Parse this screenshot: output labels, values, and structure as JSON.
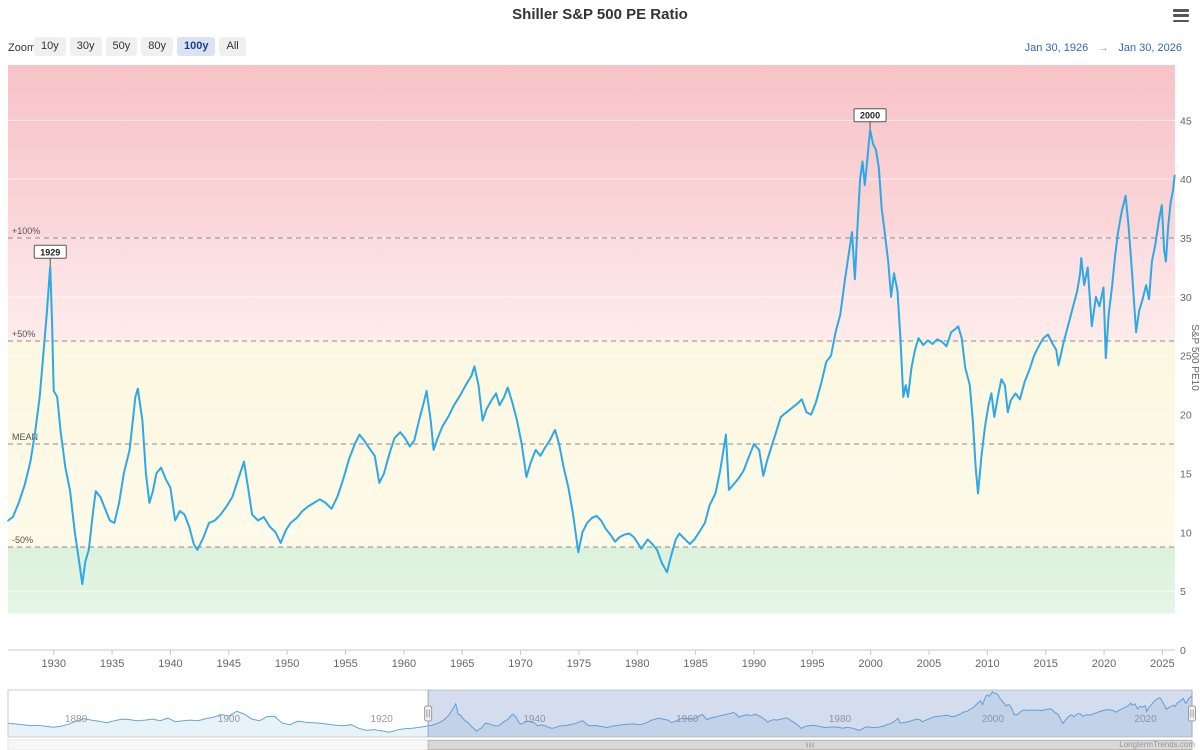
{
  "header": {
    "title": "Shiller S&P 500 PE Ratio"
  },
  "range_selector": {
    "zoom_label": "Zoom",
    "buttons": [
      "10y",
      "30y",
      "50y",
      "80y",
      "100y",
      "All"
    ],
    "selected": "100y",
    "date_from": "Jan 30, 1926",
    "date_arrow": "→",
    "date_to": "Jan 30, 2026",
    "accent_color": "#3565c0"
  },
  "credits": {
    "text": "LongtermTrends.com"
  },
  "chart_data": {
    "type": "line",
    "title": "Shiller S&P 500 PE Ratio",
    "series_name": "Shiller S&P 500 PE Ratio",
    "ylabel": "S&P 500 PE10",
    "line_color": "#2ea8e6",
    "x_range": [
      1926.08,
      2026.08
    ],
    "y_range": [
      0,
      49.7
    ],
    "y_ticks": [
      0,
      5,
      10,
      15,
      20,
      25,
      30,
      35,
      40,
      45
    ],
    "x_ticks": [
      1930,
      1935,
      1940,
      1945,
      1950,
      1955,
      1960,
      1965,
      1970,
      1975,
      1980,
      1985,
      1990,
      1995,
      2000,
      2005,
      2010,
      2015,
      2020,
      2025
    ],
    "guides": [
      {
        "label": "+100%",
        "value": 35.0
      },
      {
        "label": "+50%",
        "value": 26.25
      },
      {
        "label": "MEAN",
        "value": 17.5
      },
      {
        "label": "-50%",
        "value": 8.75
      }
    ],
    "bands": [
      {
        "from": 35.0,
        "to": 49.7,
        "color_top": "#f7c3c7",
        "color_bottom": "#fbd8da"
      },
      {
        "from": 26.25,
        "to": 35.0,
        "color_top": "#fbdce0",
        "color_bottom": "#fdecea"
      },
      {
        "from": 8.75,
        "to": 26.25,
        "color_top": "#fbf7e0",
        "color_bottom": "#fdfae9"
      },
      {
        "from": 3.1,
        "to": 8.75,
        "color_top": "#dcf2dc",
        "color_bottom": "#e5f6e4"
      },
      {
        "from": 0,
        "to": 3.1,
        "color_top": "#ffffff",
        "color_bottom": "#ffffff"
      }
    ],
    "flags": [
      {
        "label": "1929",
        "x": 1929.7,
        "y": 32.6
      },
      {
        "label": "2000",
        "x": 1999.95,
        "y": 44.2
      }
    ],
    "points": [
      [
        1871.1,
        13.5
      ],
      [
        1872,
        12.8
      ],
      [
        1873,
        12
      ],
      [
        1874,
        11
      ],
      [
        1875,
        11.5
      ],
      [
        1876,
        10.5
      ],
      [
        1877,
        9.5
      ],
      [
        1878,
        10.5
      ],
      [
        1879,
        12.5
      ],
      [
        1880,
        15.5
      ],
      [
        1881,
        18
      ],
      [
        1882,
        16.5
      ],
      [
        1883,
        15.5
      ],
      [
        1884,
        14
      ],
      [
        1885,
        16
      ],
      [
        1886,
        17.5
      ],
      [
        1887,
        17
      ],
      [
        1888,
        16
      ],
      [
        1889,
        16.5
      ],
      [
        1890,
        17.5
      ],
      [
        1891,
        16
      ],
      [
        1892,
        18.5
      ],
      [
        1893,
        15
      ],
      [
        1894,
        16
      ],
      [
        1895,
        16.5
      ],
      [
        1896,
        16
      ],
      [
        1897,
        18
      ],
      [
        1898,
        19.5
      ],
      [
        1899,
        22
      ],
      [
        1900,
        20.5
      ],
      [
        1901,
        25.2
      ],
      [
        1902,
        22.5
      ],
      [
        1903,
        17.5
      ],
      [
        1904,
        16
      ],
      [
        1905,
        20
      ],
      [
        1906,
        20.2
      ],
      [
        1907,
        13.5
      ],
      [
        1908,
        12
      ],
      [
        1909,
        15.5
      ],
      [
        1910,
        14.5
      ],
      [
        1911,
        14
      ],
      [
        1912,
        13.5
      ],
      [
        1913,
        12.5
      ],
      [
        1914,
        11.5
      ],
      [
        1915,
        11
      ],
      [
        1916,
        12
      ],
      [
        1917,
        8.5
      ],
      [
        1918,
        6.5
      ],
      [
        1919,
        7.2
      ],
      [
        1920,
        6
      ],
      [
        1920.9,
        4.8
      ],
      [
        1921.5,
        5.5
      ],
      [
        1922,
        7
      ],
      [
        1923,
        8
      ],
      [
        1924,
        8.5
      ],
      [
        1925,
        9.5
      ],
      [
        1925.6,
        10.3
      ],
      [
        1926.1,
        11
      ],
      [
        1926.5,
        11.3
      ],
      [
        1927,
        12.5
      ],
      [
        1927.5,
        14
      ],
      [
        1928,
        16
      ],
      [
        1928.4,
        18.5
      ],
      [
        1928.8,
        21.5
      ],
      [
        1929.1,
        25
      ],
      [
        1929.4,
        28.5
      ],
      [
        1929.7,
        32.6
      ],
      [
        1929.85,
        28
      ],
      [
        1930,
        22
      ],
      [
        1930.3,
        21.5
      ],
      [
        1930.6,
        18.5
      ],
      [
        1931,
        15.5
      ],
      [
        1931.4,
        13.5
      ],
      [
        1931.8,
        10
      ],
      [
        1932.1,
        8
      ],
      [
        1932.45,
        5.6
      ],
      [
        1932.7,
        7.5
      ],
      [
        1933,
        8.5
      ],
      [
        1933.4,
        12
      ],
      [
        1933.6,
        13.5
      ],
      [
        1934,
        13
      ],
      [
        1934.4,
        12
      ],
      [
        1934.8,
        11
      ],
      [
        1935.2,
        10.8
      ],
      [
        1935.6,
        12.5
      ],
      [
        1936,
        15
      ],
      [
        1936.5,
        17
      ],
      [
        1937,
        21.5
      ],
      [
        1937.2,
        22.2
      ],
      [
        1937.6,
        19.5
      ],
      [
        1937.9,
        15
      ],
      [
        1938.2,
        12.5
      ],
      [
        1938.5,
        13.5
      ],
      [
        1938.8,
        15
      ],
      [
        1939.2,
        15.5
      ],
      [
        1939.6,
        14.5
      ],
      [
        1940,
        13.8
      ],
      [
        1940.4,
        11
      ],
      [
        1940.8,
        11.8
      ],
      [
        1941.2,
        11.5
      ],
      [
        1941.6,
        10.5
      ],
      [
        1942,
        9
      ],
      [
        1942.3,
        8.5
      ],
      [
        1942.8,
        9.5
      ],
      [
        1943.3,
        10.8
      ],
      [
        1943.8,
        11
      ],
      [
        1944.3,
        11.5
      ],
      [
        1944.8,
        12.2
      ],
      [
        1945.3,
        13
      ],
      [
        1945.8,
        14.5
      ],
      [
        1946.3,
        16
      ],
      [
        1946.7,
        13.5
      ],
      [
        1947,
        11.5
      ],
      [
        1947.5,
        11
      ],
      [
        1948,
        11.3
      ],
      [
        1948.5,
        10.5
      ],
      [
        1949,
        10
      ],
      [
        1949.45,
        9.1
      ],
      [
        1949.9,
        10.2
      ],
      [
        1950.3,
        10.8
      ],
      [
        1950.8,
        11.2
      ],
      [
        1951.3,
        11.8
      ],
      [
        1951.8,
        12.2
      ],
      [
        1952.3,
        12.5
      ],
      [
        1952.8,
        12.8
      ],
      [
        1953.3,
        12.5
      ],
      [
        1953.8,
        12
      ],
      [
        1954.3,
        13
      ],
      [
        1954.8,
        14.5
      ],
      [
        1955.3,
        16.2
      ],
      [
        1955.8,
        17.5
      ],
      [
        1956.2,
        18.3
      ],
      [
        1956.6,
        17.8
      ],
      [
        1957,
        17.2
      ],
      [
        1957.5,
        16.5
      ],
      [
        1957.9,
        14.2
      ],
      [
        1958.3,
        15
      ],
      [
        1958.8,
        16.8
      ],
      [
        1959.2,
        18
      ],
      [
        1959.7,
        18.5
      ],
      [
        1960.1,
        18
      ],
      [
        1960.5,
        17.3
      ],
      [
        1960.9,
        17.8
      ],
      [
        1961.3,
        19.5
      ],
      [
        1961.7,
        21
      ],
      [
        1961.95,
        22
      ],
      [
        1962.3,
        19.5
      ],
      [
        1962.55,
        17
      ],
      [
        1962.9,
        18
      ],
      [
        1963.3,
        19
      ],
      [
        1963.8,
        19.8
      ],
      [
        1964.3,
        20.8
      ],
      [
        1964.8,
        21.6
      ],
      [
        1965.3,
        22.5
      ],
      [
        1965.8,
        23.3
      ],
      [
        1966.05,
        24.1
      ],
      [
        1966.4,
        22.5
      ],
      [
        1966.75,
        19.5
      ],
      [
        1967.1,
        20.5
      ],
      [
        1967.5,
        21.2
      ],
      [
        1967.9,
        21.8
      ],
      [
        1968.2,
        20.8
      ],
      [
        1968.6,
        21.5
      ],
      [
        1968.9,
        22.3
      ],
      [
        1969.3,
        21
      ],
      [
        1969.7,
        19.5
      ],
      [
        1970.1,
        17.5
      ],
      [
        1970.5,
        14.7
      ],
      [
        1970.9,
        16
      ],
      [
        1971.3,
        17
      ],
      [
        1971.7,
        16.5
      ],
      [
        1972.1,
        17.2
      ],
      [
        1972.5,
        17.8
      ],
      [
        1972.95,
        18.7
      ],
      [
        1973.3,
        17.5
      ],
      [
        1973.7,
        15.5
      ],
      [
        1974.1,
        13.8
      ],
      [
        1974.5,
        11.5
      ],
      [
        1974.95,
        8.3
      ],
      [
        1975.3,
        10
      ],
      [
        1975.7,
        10.8
      ],
      [
        1976.1,
        11.2
      ],
      [
        1976.5,
        11.4
      ],
      [
        1976.9,
        11
      ],
      [
        1977.3,
        10.3
      ],
      [
        1977.7,
        9.8
      ],
      [
        1978.1,
        9.2
      ],
      [
        1978.5,
        9.6
      ],
      [
        1978.9,
        9.8
      ],
      [
        1979.3,
        9.9
      ],
      [
        1979.7,
        9.6
      ],
      [
        1980.1,
        9
      ],
      [
        1980.35,
        8.6
      ],
      [
        1980.9,
        9.4
      ],
      [
        1981.3,
        9
      ],
      [
        1981.7,
        8.5
      ],
      [
        1982.1,
        7.4
      ],
      [
        1982.55,
        6.6
      ],
      [
        1982.9,
        8
      ],
      [
        1983.3,
        9.4
      ],
      [
        1983.6,
        9.9
      ],
      [
        1984,
        9.5
      ],
      [
        1984.5,
        9
      ],
      [
        1984.9,
        9.4
      ],
      [
        1985.3,
        10
      ],
      [
        1985.8,
        10.8
      ],
      [
        1986.2,
        12.3
      ],
      [
        1986.7,
        13.3
      ],
      [
        1987.1,
        15.2
      ],
      [
        1987.6,
        18.3
      ],
      [
        1987.85,
        13.6
      ],
      [
        1988.2,
        14
      ],
      [
        1988.7,
        14.6
      ],
      [
        1989.1,
        15.2
      ],
      [
        1989.6,
        16.5
      ],
      [
        1990,
        17.5
      ],
      [
        1990.45,
        17
      ],
      [
        1990.8,
        14.8
      ],
      [
        1991.1,
        16
      ],
      [
        1991.5,
        17.3
      ],
      [
        1991.9,
        18.5
      ],
      [
        1992.3,
        19.8
      ],
      [
        1992.8,
        20.2
      ],
      [
        1993.3,
        20.6
      ],
      [
        1993.8,
        21
      ],
      [
        1994.1,
        21.3
      ],
      [
        1994.5,
        20.2
      ],
      [
        1994.9,
        20
      ],
      [
        1995.3,
        21
      ],
      [
        1995.8,
        22.8
      ],
      [
        1996.2,
        24.5
      ],
      [
        1996.6,
        25
      ],
      [
        1997,
        27
      ],
      [
        1997.4,
        28.5
      ],
      [
        1997.8,
        31.5
      ],
      [
        1998.1,
        33.5
      ],
      [
        1998.4,
        35.5
      ],
      [
        1998.65,
        31.5
      ],
      [
        1998.9,
        36.5
      ],
      [
        1999.1,
        40
      ],
      [
        1999.3,
        41.5
      ],
      [
        1999.5,
        39.5
      ],
      [
        1999.75,
        42
      ],
      [
        1999.95,
        44.2
      ],
      [
        2000.2,
        43
      ],
      [
        2000.45,
        42.5
      ],
      [
        2000.7,
        41
      ],
      [
        2000.95,
        37.5
      ],
      [
        2001.2,
        35.5
      ],
      [
        2001.5,
        33
      ],
      [
        2001.75,
        30
      ],
      [
        2002,
        32
      ],
      [
        2002.3,
        30.5
      ],
      [
        2002.55,
        26.5
      ],
      [
        2002.8,
        21.5
      ],
      [
        2003,
        22.5
      ],
      [
        2003.2,
        21.5
      ],
      [
        2003.5,
        24
      ],
      [
        2003.8,
        25.5
      ],
      [
        2004.1,
        26.5
      ],
      [
        2004.5,
        25.9
      ],
      [
        2004.9,
        26.3
      ],
      [
        2005.3,
        26
      ],
      [
        2005.7,
        26.4
      ],
      [
        2006.1,
        26.2
      ],
      [
        2006.5,
        25.8
      ],
      [
        2006.9,
        27
      ],
      [
        2007.3,
        27.3
      ],
      [
        2007.5,
        27.5
      ],
      [
        2007.8,
        26.5
      ],
      [
        2008.1,
        24
      ],
      [
        2008.5,
        22.5
      ],
      [
        2008.75,
        19.5
      ],
      [
        2009,
        15.5
      ],
      [
        2009.2,
        13.3
      ],
      [
        2009.5,
        16.5
      ],
      [
        2009.8,
        19
      ],
      [
        2010.1,
        20.8
      ],
      [
        2010.35,
        21.8
      ],
      [
        2010.6,
        19.8
      ],
      [
        2010.9,
        21.5
      ],
      [
        2011.2,
        23
      ],
      [
        2011.5,
        22.5
      ],
      [
        2011.75,
        20.2
      ],
      [
        2012,
        21.2
      ],
      [
        2012.4,
        21.8
      ],
      [
        2012.8,
        21.3
      ],
      [
        2013.2,
        22.8
      ],
      [
        2013.6,
        23.8
      ],
      [
        2014,
        25
      ],
      [
        2014.4,
        25.8
      ],
      [
        2014.8,
        26.5
      ],
      [
        2015.2,
        26.8
      ],
      [
        2015.6,
        26
      ],
      [
        2015.9,
        25.5
      ],
      [
        2016.1,
        24.2
      ],
      [
        2016.5,
        26
      ],
      [
        2016.9,
        27.5
      ],
      [
        2017.3,
        29
      ],
      [
        2017.7,
        30.5
      ],
      [
        2017.95,
        32
      ],
      [
        2018.05,
        33.3
      ],
      [
        2018.3,
        31
      ],
      [
        2018.6,
        32.5
      ],
      [
        2018.95,
        27.5
      ],
      [
        2019.3,
        30
      ],
      [
        2019.6,
        29.2
      ],
      [
        2019.95,
        30.8
      ],
      [
        2020.15,
        24.8
      ],
      [
        2020.4,
        28.5
      ],
      [
        2020.7,
        31
      ],
      [
        2020.95,
        33.5
      ],
      [
        2021.2,
        35.5
      ],
      [
        2021.5,
        37.2
      ],
      [
        2021.85,
        38.6
      ],
      [
        2022.1,
        36
      ],
      [
        2022.4,
        32
      ],
      [
        2022.75,
        27
      ],
      [
        2023,
        28.8
      ],
      [
        2023.3,
        29.8
      ],
      [
        2023.6,
        31
      ],
      [
        2023.85,
        29.8
      ],
      [
        2024.1,
        33
      ],
      [
        2024.4,
        34.5
      ],
      [
        2024.7,
        36.5
      ],
      [
        2024.95,
        37.8
      ],
      [
        2025.15,
        34
      ],
      [
        2025.3,
        33
      ],
      [
        2025.5,
        36
      ],
      [
        2025.7,
        38
      ],
      [
        2025.9,
        39
      ],
      [
        2026.05,
        40.3
      ]
    ]
  },
  "navigator": {
    "x_range": [
      1871.08,
      2026.08
    ],
    "x_ticks": [
      1880,
      1900,
      1920,
      1940,
      1960,
      1980,
      2000,
      2020
    ],
    "selected_from": 1926.08,
    "selected_to": 2026.08,
    "line_color": "#61a8da",
    "fill_color": "rgba(97,168,218,0.15)",
    "mask_color": "rgba(102,133,194,0.28)"
  }
}
